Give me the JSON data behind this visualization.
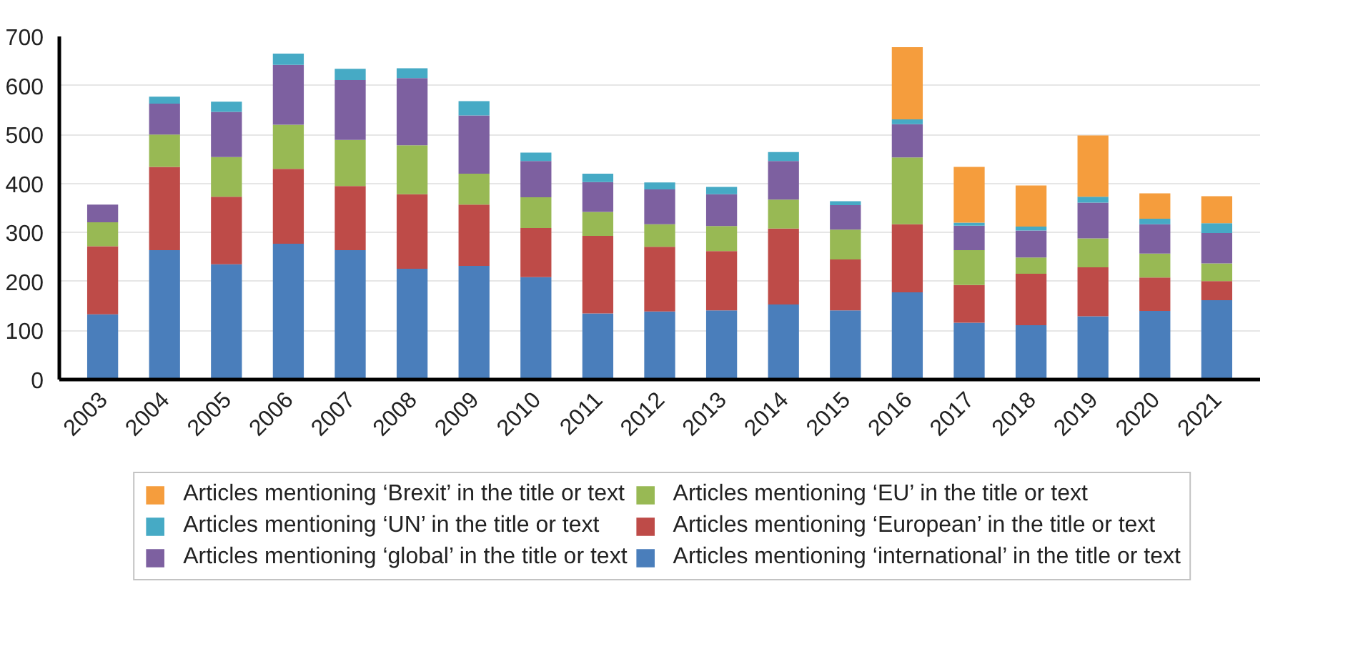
{
  "chart_data": {
    "type": "bar",
    "stacked": true,
    "categories": [
      "2003",
      "2004",
      "2005",
      "2006",
      "2007",
      "2008",
      "2009",
      "2010",
      "2011",
      "2012",
      "2013",
      "2014",
      "2015",
      "2016",
      "2017",
      "2018",
      "2019",
      "2020",
      "2021"
    ],
    "ylim": [
      0,
      700
    ],
    "yticks": [
      0,
      100,
      200,
      300,
      400,
      500,
      600,
      700
    ],
    "grid": "y",
    "legend": "bottom",
    "series": [
      {
        "name": "Articles mentioning ‘international’ in the title or text",
        "color": "#4a7ebb",
        "values": [
          133,
          264,
          235,
          277,
          264,
          226,
          232,
          209,
          135,
          139,
          141,
          153,
          141,
          178,
          116,
          111,
          129,
          140,
          162
        ]
      },
      {
        "name": "Articles mentioning ‘European’ in the title or text",
        "color": "#be4b48",
        "values": [
          139,
          170,
          138,
          153,
          131,
          152,
          125,
          100,
          158,
          132,
          121,
          155,
          104,
          139,
          77,
          105,
          100,
          68,
          39
        ]
      },
      {
        "name": "Articles mentioning ‘EU’ in the title or text",
        "color": "#98b954",
        "values": [
          49,
          66,
          81,
          90,
          94,
          100,
          63,
          63,
          49,
          46,
          51,
          59,
          61,
          136,
          71,
          33,
          59,
          49,
          36
        ]
      },
      {
        "name": "Articles mentioning ‘global’ in the title or text",
        "color": "#7d60a0",
        "values": [
          36,
          63,
          92,
          122,
          122,
          137,
          119,
          74,
          61,
          71,
          65,
          79,
          50,
          68,
          50,
          55,
          73,
          60,
          62
        ]
      },
      {
        "name": "Articles mentioning ‘UN’ in the title or text",
        "color": "#46aac5",
        "values": [
          0,
          14,
          21,
          23,
          23,
          20,
          29,
          17,
          17,
          14,
          15,
          18,
          8,
          10,
          6,
          8,
          12,
          11,
          20
        ]
      },
      {
        "name": "Articles mentioning ‘Brexit’ in the title or text",
        "color": "#f59d3d",
        "values": [
          0,
          0,
          0,
          0,
          0,
          0,
          0,
          0,
          0,
          0,
          0,
          0,
          0,
          147,
          114,
          84,
          125,
          52,
          55
        ]
      }
    ]
  }
}
